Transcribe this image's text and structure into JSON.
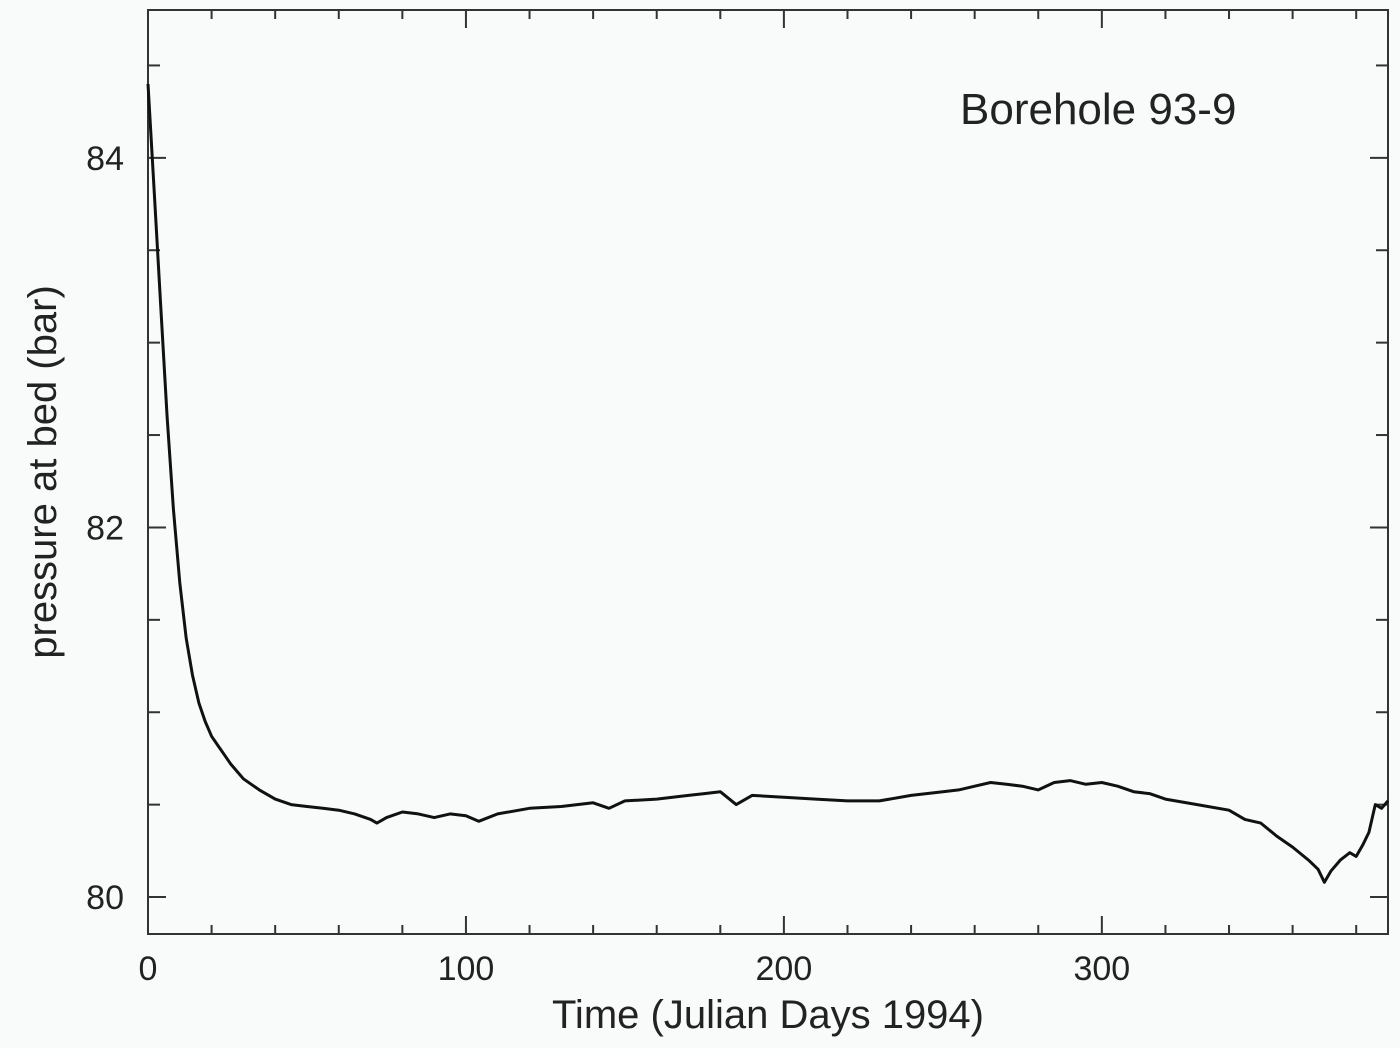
{
  "chart_data": {
    "type": "line",
    "title": "",
    "annotation": "Borehole 93-9",
    "xlabel": "Time (Julian Days 1994)",
    "ylabel": "pressure at bed (bar)",
    "xlim": [
      0,
      390
    ],
    "ylim": [
      79.8,
      84.8
    ],
    "x_ticks": [
      0,
      100,
      200,
      300
    ],
    "y_ticks": [
      80,
      82,
      84
    ],
    "grid": false,
    "legend": "none",
    "line_color": "#111111",
    "series": [
      {
        "x": [
          0,
          2,
          4,
          6,
          8,
          10,
          12,
          14,
          16,
          18,
          20,
          22,
          24,
          26,
          28,
          30,
          35,
          40,
          45,
          50,
          55,
          60,
          65,
          70,
          72,
          75,
          80,
          85,
          90,
          95,
          100,
          104,
          110,
          120,
          130,
          140,
          145,
          150,
          160,
          170,
          175,
          180,
          185,
          190,
          200,
          210,
          220,
          230,
          240,
          250,
          255,
          260,
          265,
          270,
          275,
          280,
          285,
          290,
          295,
          300,
          305,
          310,
          315,
          320,
          330,
          340,
          345,
          350,
          355,
          360,
          365,
          368,
          370,
          372,
          375,
          378,
          380,
          382,
          384,
          386,
          388,
          390
        ],
        "y": [
          84.4,
          83.8,
          83.2,
          82.6,
          82.1,
          81.7,
          81.4,
          81.2,
          81.05,
          80.95,
          80.87,
          80.82,
          80.77,
          80.72,
          80.68,
          80.64,
          80.58,
          80.53,
          80.5,
          80.49,
          80.48,
          80.47,
          80.45,
          80.42,
          80.4,
          80.43,
          80.46,
          80.45,
          80.43,
          80.45,
          80.44,
          80.41,
          80.45,
          80.48,
          80.49,
          80.51,
          80.48,
          80.52,
          80.53,
          80.55,
          80.56,
          80.57,
          80.5,
          80.55,
          80.54,
          80.53,
          80.52,
          80.52,
          80.55,
          80.57,
          80.58,
          80.6,
          80.62,
          80.61,
          80.6,
          80.58,
          80.62,
          80.63,
          80.61,
          80.62,
          80.6,
          80.57,
          80.56,
          80.53,
          80.5,
          80.47,
          80.42,
          80.4,
          80.33,
          80.27,
          80.2,
          80.15,
          80.08,
          80.14,
          80.2,
          80.24,
          80.22,
          80.28,
          80.35,
          80.5,
          80.48,
          80.52
        ]
      }
    ]
  }
}
